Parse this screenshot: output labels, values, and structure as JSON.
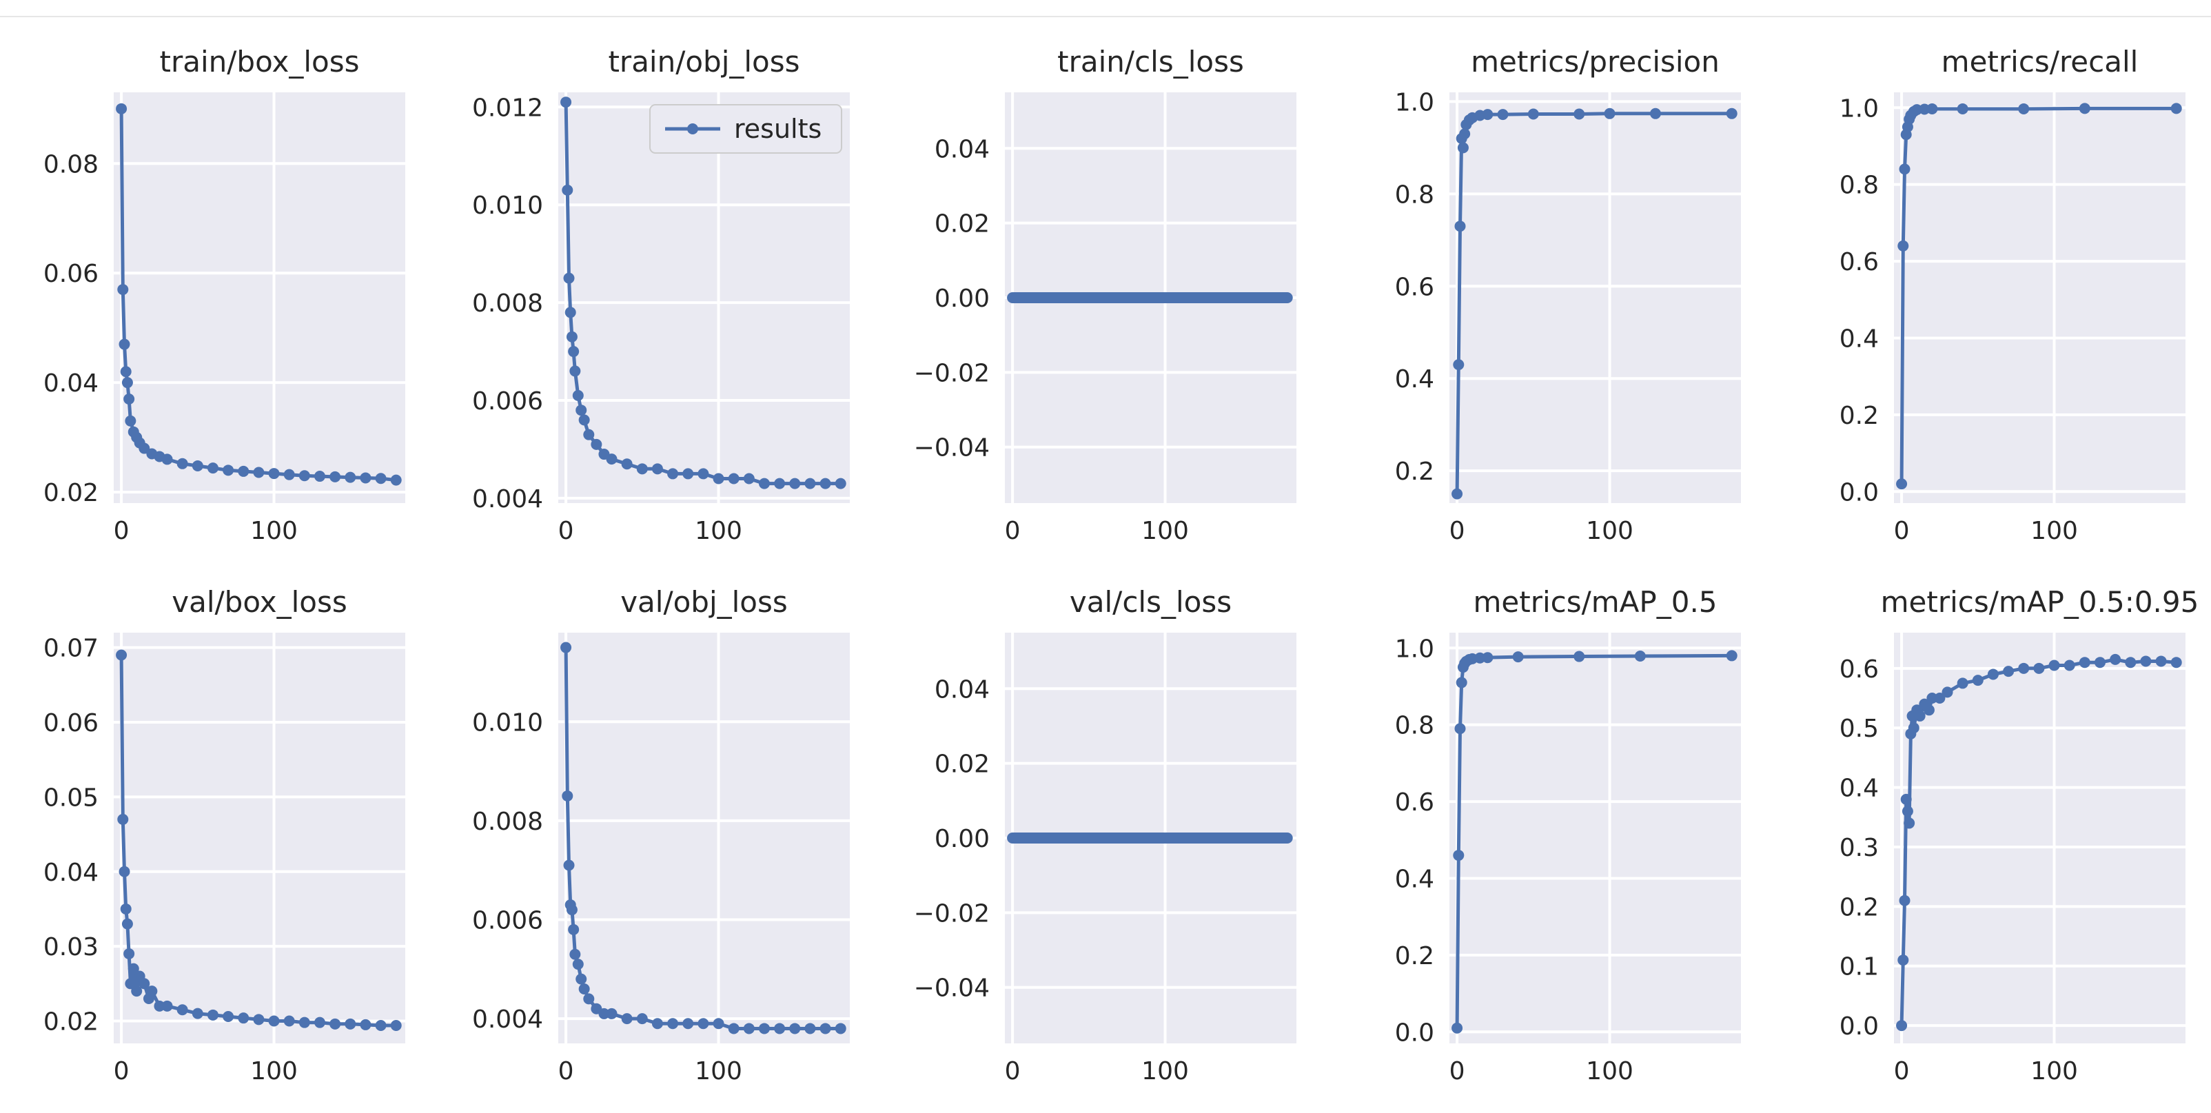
{
  "colors": {
    "series": "#4c72b0",
    "panel": "#eaeaf2",
    "grid": "#ffffff",
    "text": "#262626"
  },
  "legend": {
    "label": "results",
    "panel": 1
  },
  "chart_data": [
    {
      "type": "line",
      "title": "train/box_loss",
      "xlim": [
        -5,
        186
      ],
      "ylim": [
        0.018,
        0.093
      ],
      "xticks": [
        0,
        100
      ],
      "yticks": [
        0.02,
        0.04,
        0.06,
        0.08
      ],
      "ytick_labels": [
        "0.02",
        "0.04",
        "0.06",
        "0.08"
      ],
      "series": [
        {
          "name": "results",
          "x": [
            0,
            1,
            2,
            3,
            4,
            5,
            6,
            8,
            10,
            12,
            15,
            20,
            25,
            30,
            40,
            50,
            60,
            70,
            80,
            90,
            100,
            110,
            120,
            130,
            140,
            150,
            160,
            170,
            180
          ],
          "y": [
            0.09,
            0.057,
            0.047,
            0.042,
            0.04,
            0.037,
            0.033,
            0.031,
            0.03,
            0.029,
            0.028,
            0.027,
            0.0265,
            0.026,
            0.0252,
            0.0248,
            0.0244,
            0.024,
            0.0238,
            0.0236,
            0.0234,
            0.0232,
            0.023,
            0.0229,
            0.0228,
            0.0227,
            0.0226,
            0.0225,
            0.0222
          ]
        }
      ]
    },
    {
      "type": "line",
      "title": "train/obj_loss",
      "xlim": [
        -5,
        186
      ],
      "ylim": [
        0.0039,
        0.0123
      ],
      "xticks": [
        0,
        100
      ],
      "yticks": [
        0.004,
        0.006,
        0.008,
        0.01,
        0.012
      ],
      "ytick_labels": [
        "0.004",
        "0.006",
        "0.008",
        "0.010",
        "0.012"
      ],
      "series": [
        {
          "name": "results",
          "x": [
            0,
            1,
            2,
            3,
            4,
            5,
            6,
            8,
            10,
            12,
            15,
            20,
            25,
            30,
            40,
            50,
            60,
            70,
            80,
            90,
            100,
            110,
            120,
            130,
            140,
            150,
            160,
            170,
            180
          ],
          "y": [
            0.0121,
            0.0103,
            0.0085,
            0.0078,
            0.0073,
            0.007,
            0.0066,
            0.0061,
            0.0058,
            0.0056,
            0.0053,
            0.0051,
            0.0049,
            0.0048,
            0.0047,
            0.0046,
            0.0046,
            0.0045,
            0.0045,
            0.0045,
            0.0044,
            0.0044,
            0.0044,
            0.0043,
            0.0043,
            0.0043,
            0.0043,
            0.0043,
            0.0043
          ]
        }
      ]
    },
    {
      "type": "line",
      "title": "train/cls_loss",
      "xlim": [
        -5,
        186
      ],
      "ylim": [
        -0.055,
        0.055
      ],
      "xticks": [
        0,
        100
      ],
      "yticks": [
        -0.04,
        -0.02,
        0.0,
        0.02,
        0.04
      ],
      "ytick_labels": [
        "−0.04",
        "−0.02",
        "0.00",
        "0.02",
        "0.04"
      ],
      "series": [
        {
          "name": "results",
          "x": [
            0,
            180
          ],
          "y": [
            0,
            0
          ]
        }
      ]
    },
    {
      "type": "line",
      "title": "metrics/precision",
      "xlim": [
        -5,
        186
      ],
      "ylim": [
        0.13,
        1.02
      ],
      "xticks": [
        0,
        100
      ],
      "yticks": [
        0.2,
        0.4,
        0.6,
        0.8,
        1.0
      ],
      "ytick_labels": [
        "0.2",
        "0.4",
        "0.6",
        "0.8",
        "1.0"
      ],
      "series": [
        {
          "name": "results",
          "x": [
            0,
            1,
            2,
            3,
            4,
            5,
            6,
            8,
            10,
            15,
            20,
            30,
            50,
            80,
            100,
            130,
            180
          ],
          "y": [
            0.15,
            0.43,
            0.73,
            0.92,
            0.9,
            0.93,
            0.95,
            0.96,
            0.965,
            0.97,
            0.972,
            0.972,
            0.973,
            0.973,
            0.974,
            0.974,
            0.974
          ]
        }
      ]
    },
    {
      "type": "line",
      "title": "metrics/recall",
      "xlim": [
        -5,
        186
      ],
      "ylim": [
        -0.03,
        1.04
      ],
      "xticks": [
        0,
        100
      ],
      "yticks": [
        0.0,
        0.2,
        0.4,
        0.6,
        0.8,
        1.0
      ],
      "ytick_labels": [
        "0.0",
        "0.2",
        "0.4",
        "0.6",
        "0.8",
        "1.0"
      ],
      "series": [
        {
          "name": "results",
          "x": [
            0,
            1,
            2,
            3,
            4,
            5,
            6,
            8,
            10,
            15,
            20,
            40,
            80,
            120,
            180
          ],
          "y": [
            0.02,
            0.64,
            0.84,
            0.93,
            0.95,
            0.97,
            0.98,
            0.99,
            0.995,
            0.996,
            0.997,
            0.997,
            0.997,
            0.998,
            0.998
          ]
        }
      ]
    },
    {
      "type": "line",
      "title": "val/box_loss",
      "xlim": [
        -5,
        186
      ],
      "ylim": [
        0.017,
        0.072
      ],
      "xticks": [
        0,
        100
      ],
      "yticks": [
        0.02,
        0.03,
        0.04,
        0.05,
        0.06,
        0.07
      ],
      "ytick_labels": [
        "0.02",
        "0.03",
        "0.04",
        "0.05",
        "0.06",
        "0.07"
      ],
      "series": [
        {
          "name": "results",
          "x": [
            0,
            1,
            2,
            3,
            4,
            5,
            6,
            8,
            10,
            12,
            15,
            18,
            20,
            25,
            30,
            40,
            50,
            60,
            70,
            80,
            90,
            100,
            110,
            120,
            130,
            140,
            150,
            160,
            170,
            180
          ],
          "y": [
            0.069,
            0.047,
            0.04,
            0.035,
            0.033,
            0.029,
            0.025,
            0.027,
            0.024,
            0.026,
            0.025,
            0.023,
            0.024,
            0.022,
            0.022,
            0.0215,
            0.021,
            0.0208,
            0.0206,
            0.0204,
            0.0202,
            0.02,
            0.02,
            0.0198,
            0.0198,
            0.0196,
            0.0196,
            0.0195,
            0.0194,
            0.0194
          ]
        }
      ]
    },
    {
      "type": "line",
      "title": "val/obj_loss",
      "xlim": [
        -5,
        186
      ],
      "ylim": [
        0.0035,
        0.0118
      ],
      "xticks": [
        0,
        100
      ],
      "yticks": [
        0.004,
        0.006,
        0.008,
        0.01
      ],
      "ytick_labels": [
        "0.004",
        "0.006",
        "0.008",
        "0.010"
      ],
      "series": [
        {
          "name": "results",
          "x": [
            0,
            1,
            2,
            3,
            4,
            5,
            6,
            8,
            10,
            12,
            15,
            20,
            25,
            30,
            40,
            50,
            60,
            70,
            80,
            90,
            100,
            110,
            120,
            130,
            140,
            150,
            160,
            170,
            180
          ],
          "y": [
            0.0115,
            0.0085,
            0.0071,
            0.0063,
            0.0062,
            0.0058,
            0.0053,
            0.0051,
            0.0048,
            0.0046,
            0.0044,
            0.0042,
            0.0041,
            0.0041,
            0.004,
            0.004,
            0.0039,
            0.0039,
            0.0039,
            0.0039,
            0.0039,
            0.0038,
            0.0038,
            0.0038,
            0.0038,
            0.0038,
            0.0038,
            0.0038,
            0.0038
          ]
        }
      ]
    },
    {
      "type": "line",
      "title": "val/cls_loss",
      "xlim": [
        -5,
        186
      ],
      "ylim": [
        -0.055,
        0.055
      ],
      "xticks": [
        0,
        100
      ],
      "yticks": [
        -0.04,
        -0.02,
        0.0,
        0.02,
        0.04
      ],
      "ytick_labels": [
        "−0.04",
        "−0.02",
        "0.00",
        "0.02",
        "0.04"
      ],
      "series": [
        {
          "name": "results",
          "x": [
            0,
            180
          ],
          "y": [
            0,
            0
          ]
        }
      ]
    },
    {
      "type": "line",
      "title": "metrics/mAP_0.5",
      "xlim": [
        -5,
        186
      ],
      "ylim": [
        -0.03,
        1.04
      ],
      "xticks": [
        0,
        100
      ],
      "yticks": [
        0.0,
        0.2,
        0.4,
        0.6,
        0.8,
        1.0
      ],
      "ytick_labels": [
        "0.0",
        "0.2",
        "0.4",
        "0.6",
        "0.8",
        "1.0"
      ],
      "series": [
        {
          "name": "results",
          "x": [
            0,
            1,
            2,
            3,
            4,
            5,
            6,
            8,
            10,
            15,
            20,
            40,
            80,
            120,
            180
          ],
          "y": [
            0.01,
            0.46,
            0.79,
            0.91,
            0.95,
            0.96,
            0.965,
            0.97,
            0.972,
            0.974,
            0.975,
            0.977,
            0.978,
            0.979,
            0.98
          ]
        }
      ]
    },
    {
      "type": "line",
      "title": "metrics/mAP_0.5:0.95",
      "xlim": [
        -5,
        186
      ],
      "ylim": [
        -0.03,
        0.66
      ],
      "xticks": [
        0,
        100
      ],
      "yticks": [
        0.0,
        0.1,
        0.2,
        0.3,
        0.4,
        0.5,
        0.6
      ],
      "ytick_labels": [
        "0.0",
        "0.1",
        "0.2",
        "0.3",
        "0.4",
        "0.5",
        "0.6"
      ],
      "series": [
        {
          "name": "results",
          "x": [
            0,
            1,
            2,
            3,
            4,
            5,
            6,
            7,
            8,
            10,
            12,
            15,
            18,
            20,
            25,
            30,
            40,
            50,
            60,
            70,
            80,
            90,
            100,
            110,
            120,
            130,
            140,
            150,
            160,
            170,
            180
          ],
          "y": [
            0.0,
            0.11,
            0.21,
            0.38,
            0.36,
            0.34,
            0.49,
            0.52,
            0.5,
            0.53,
            0.52,
            0.54,
            0.53,
            0.55,
            0.55,
            0.56,
            0.575,
            0.58,
            0.59,
            0.595,
            0.6,
            0.6,
            0.605,
            0.605,
            0.61,
            0.61,
            0.615,
            0.61,
            0.612,
            0.612,
            0.61
          ]
        }
      ]
    }
  ]
}
